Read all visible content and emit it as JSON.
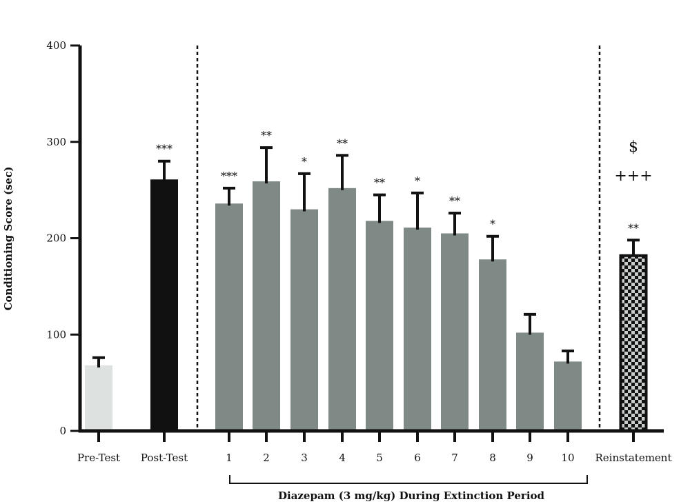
{
  "chart_data": {
    "type": "bar",
    "title": "",
    "ylabel": "Conditioning Score (sec)",
    "xlabel": "",
    "ylim": [
      0,
      400
    ],
    "yticks": [
      0,
      100,
      200,
      300,
      400
    ],
    "grid": false,
    "categories": [
      "Pre-Test",
      "Post-Test",
      "1",
      "2",
      "3",
      "4",
      "5",
      "6",
      "7",
      "8",
      "9",
      "10",
      "Reinstatement"
    ],
    "values": [
      68,
      261,
      236,
      259,
      230,
      252,
      218,
      211,
      205,
      178,
      102,
      72,
      183
    ],
    "errors": [
      8,
      19,
      16,
      35,
      37,
      34,
      27,
      36,
      21,
      24,
      19,
      11,
      15
    ],
    "bar_colors": [
      "#dde1df",
      "#111111",
      "#7f8986",
      "#7f8986",
      "#7f8986",
      "#7f8986",
      "#7f8986",
      "#7f8986",
      "#7f8986",
      "#7f8986",
      "#7f8986",
      "#7f8986",
      "checkered"
    ],
    "significance": [
      "",
      "***",
      "***",
      "**",
      "*",
      "**",
      "**",
      "*",
      "**",
      "*",
      "",
      "",
      "**"
    ],
    "reinstatement_marks": [
      "$",
      "+++"
    ],
    "group_label": "Diazepam (3 mg/kg) During Extinction Period",
    "group_members": [
      "1",
      "2",
      "3",
      "4",
      "5",
      "6",
      "7",
      "8",
      "9",
      "10"
    ]
  }
}
